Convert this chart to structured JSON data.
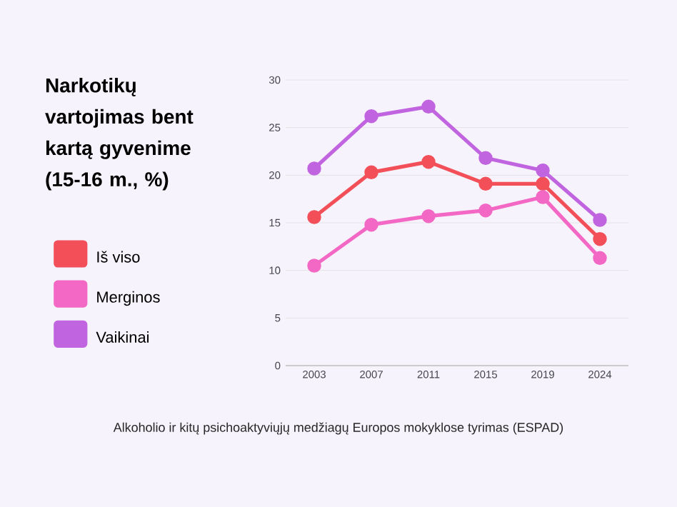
{
  "chart_data": {
    "type": "line",
    "title": "Narkotikų vartojimas bent kartą gyvenime (15-16 m., %)",
    "categories": [
      "2003",
      "2007",
      "2011",
      "2015",
      "2019",
      "2024"
    ],
    "series": [
      {
        "name": "Iš viso",
        "color": "#f24f58",
        "values": [
          15.6,
          20.3,
          21.4,
          19.1,
          19.1,
          13.3
        ]
      },
      {
        "name": "Merginos",
        "color": "#f368c4",
        "values": [
          10.5,
          14.8,
          15.7,
          16.3,
          17.7,
          11.3
        ]
      },
      {
        "name": "Vaikinai",
        "color": "#c164e0",
        "values": [
          20.7,
          26.2,
          27.2,
          21.8,
          20.5,
          15.3
        ]
      }
    ],
    "ylim": [
      0,
      30
    ],
    "yticks": [
      0,
      5,
      10,
      15,
      20,
      25,
      30
    ],
    "grid": "y",
    "legend": "left",
    "marker": "circle",
    "line_style": "solid",
    "annotations": [
      "Alkoholio ir kitų psichoaktyviųjų medžiagų Europos mokyklose tyrimas (ESPAD)"
    ]
  }
}
